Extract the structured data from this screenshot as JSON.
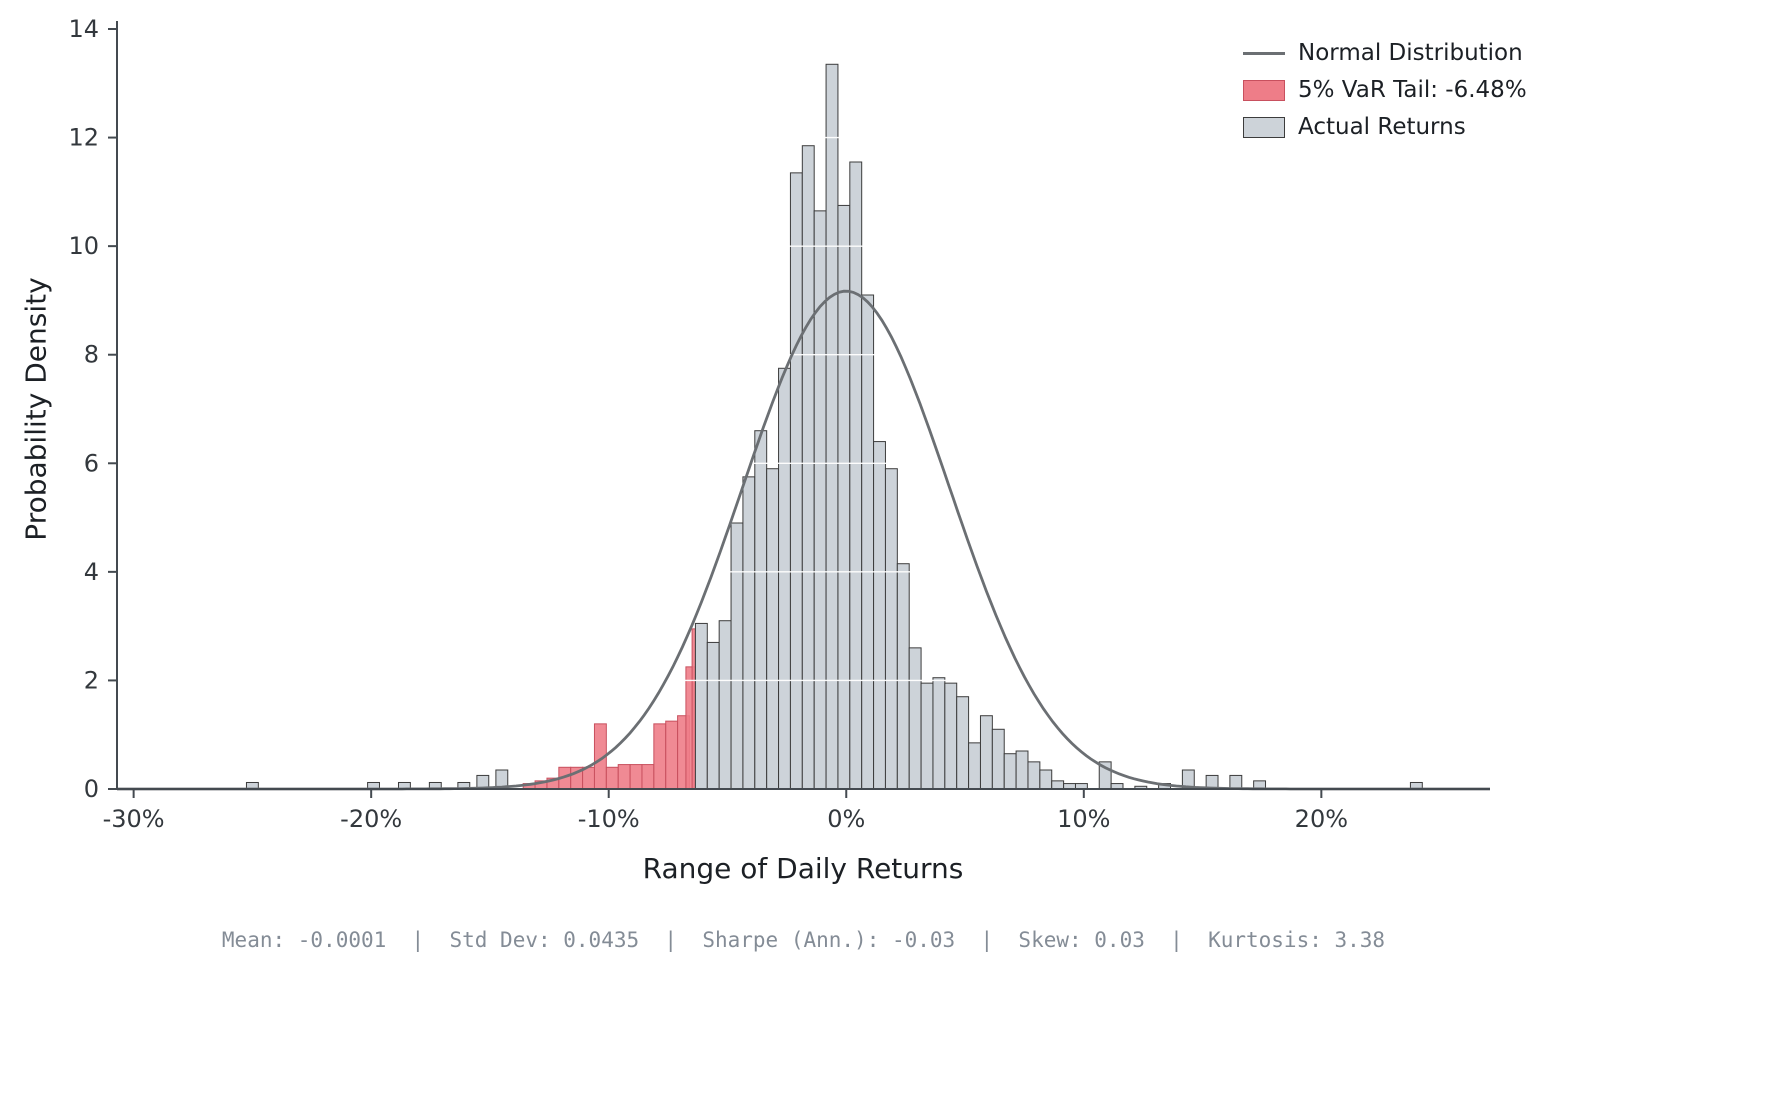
{
  "chart_data": {
    "type": "histogram",
    "xlabel": "Range of Daily Returns",
    "ylabel": "Probability Density",
    "x_ticks": [
      "-30%",
      "-20%",
      "-10%",
      "0%",
      "10%",
      "20%"
    ],
    "x_tick_values": [
      -30,
      -20,
      -10,
      0,
      10,
      20
    ],
    "y_ticks": [
      0,
      2,
      4,
      6,
      8,
      10,
      12,
      14
    ],
    "xlim": [
      -30.7,
      27.1
    ],
    "ylim": [
      0,
      14
    ],
    "bin_width_pct": 0.5,
    "var_threshold_pct": -6.48,
    "normal": {
      "mean": -0.0001,
      "std": 0.0435,
      "peak_density": 9.17
    },
    "bars": [
      [
        -25.0,
        0.12
      ],
      [
        -19.9,
        0.12
      ],
      [
        -18.6,
        0.12
      ],
      [
        -17.3,
        0.12
      ],
      [
        -16.1,
        0.12
      ],
      [
        -15.3,
        0.25
      ],
      [
        -14.5,
        0.35
      ],
      [
        -13.35,
        0.1,
        1
      ],
      [
        -12.85,
        0.15,
        1
      ],
      [
        -12.35,
        0.2,
        1
      ],
      [
        -11.85,
        0.4,
        1
      ],
      [
        -11.35,
        0.4,
        1
      ],
      [
        -10.85,
        0.4,
        1
      ],
      [
        -10.35,
        1.2,
        1
      ],
      [
        -9.85,
        0.4,
        1
      ],
      [
        -9.35,
        0.45,
        1
      ],
      [
        -8.85,
        0.45,
        1
      ],
      [
        -8.35,
        0.45,
        1
      ],
      [
        -7.85,
        1.2,
        1
      ],
      [
        -7.35,
        1.25,
        1
      ],
      [
        -6.85,
        1.35,
        1
      ],
      [
        -6.55,
        2.25,
        1,
        0.4
      ],
      [
        -6.42,
        2.95,
        1,
        0.14
      ],
      [
        -6.1,
        3.05
      ],
      [
        -5.6,
        2.7
      ],
      [
        -5.1,
        3.1
      ],
      [
        -4.6,
        4.9
      ],
      [
        -4.1,
        5.75
      ],
      [
        -3.6,
        6.6
      ],
      [
        -3.1,
        5.9
      ],
      [
        -2.6,
        7.75
      ],
      [
        -2.1,
        11.35
      ],
      [
        -1.6,
        11.85
      ],
      [
        -1.1,
        10.65
      ],
      [
        -0.6,
        13.35
      ],
      [
        -0.1,
        10.75
      ],
      [
        0.4,
        11.55
      ],
      [
        0.9,
        9.1
      ],
      [
        1.4,
        6.4
      ],
      [
        1.9,
        5.9
      ],
      [
        2.4,
        4.15
      ],
      [
        2.9,
        2.6
      ],
      [
        3.4,
        1.95
      ],
      [
        3.9,
        2.05
      ],
      [
        4.4,
        1.95
      ],
      [
        4.9,
        1.7
      ],
      [
        5.4,
        0.85
      ],
      [
        5.9,
        1.35
      ],
      [
        6.4,
        1.1
      ],
      [
        6.9,
        0.65
      ],
      [
        7.4,
        0.7
      ],
      [
        7.9,
        0.5
      ],
      [
        8.4,
        0.35
      ],
      [
        8.9,
        0.15
      ],
      [
        9.4,
        0.1
      ],
      [
        9.9,
        0.1
      ],
      [
        10.9,
        0.5
      ],
      [
        11.4,
        0.1
      ],
      [
        12.4,
        0.05
      ],
      [
        13.4,
        0.1
      ],
      [
        14.4,
        0.35
      ],
      [
        15.4,
        0.25
      ],
      [
        16.4,
        0.25
      ],
      [
        17.4,
        0.15
      ],
      [
        24.0,
        0.12
      ]
    ],
    "legend": [
      {
        "label": "Normal Distribution",
        "type": "line"
      },
      {
        "label": "5% VaR Tail: -6.48%",
        "type": "patch-tail"
      },
      {
        "label": "Actual Returns",
        "type": "patch-bars"
      }
    ],
    "colors": {
      "bar_fill": "#cdd3d9",
      "bar_edge": "#3c3c3c",
      "tail_fill": "#ee7d88",
      "tail_edge": "#c8505e",
      "curve": "#6b6f73",
      "grid": "#ffffff",
      "axis": "#444a50",
      "tick_label": "#33383d"
    }
  },
  "footer": {
    "stats": "Mean: -0.0001  |  Std Dev: 0.0435  |  Sharpe (Ann.): -0.03  |  Skew: 0.03  |  Kurtosis: 3.38"
  }
}
